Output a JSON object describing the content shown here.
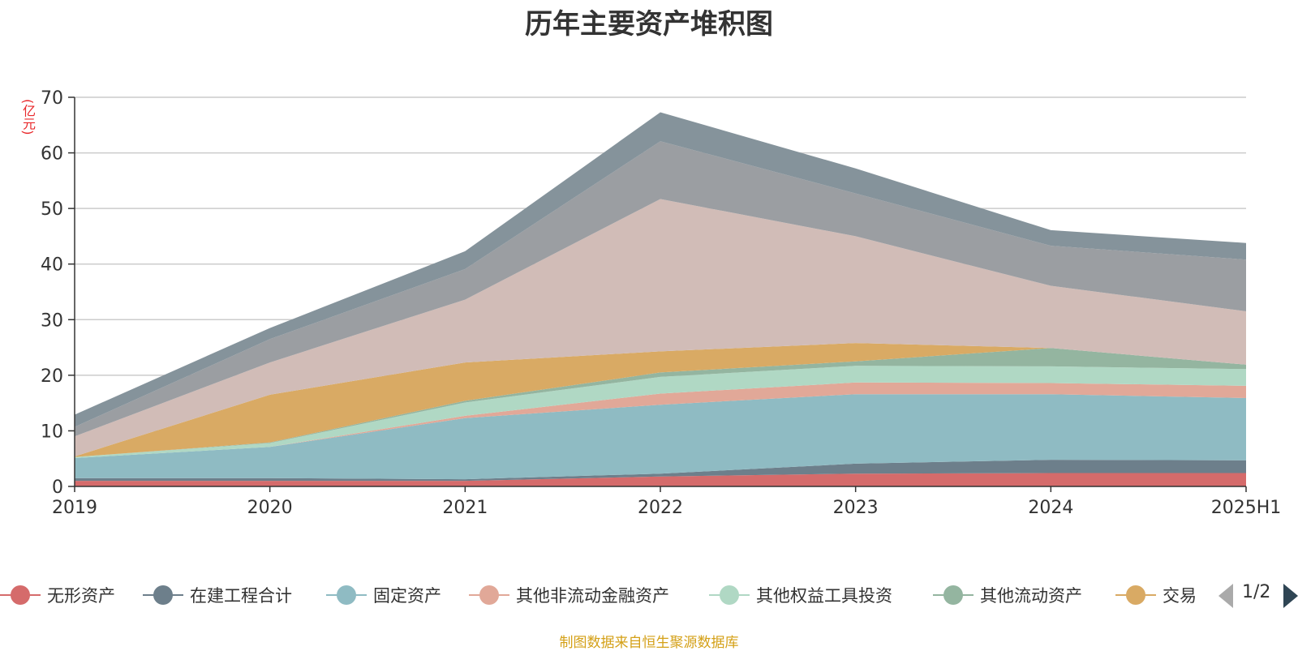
{
  "chart_data": {
    "type": "area",
    "stacked": true,
    "title": "历年主要资产堆积图",
    "unit_label": "(亿元)",
    "categories": [
      "2019",
      "2020",
      "2021",
      "2022",
      "2023",
      "2024",
      "2025H1"
    ],
    "ylim": [
      0,
      70
    ],
    "y_ticks": [
      0,
      10,
      20,
      30,
      40,
      50,
      60,
      70
    ],
    "grid": true,
    "legend_position": "bottom",
    "series": [
      {
        "name": "无形资产",
        "color": "#d56b6b",
        "values": [
          1.0,
          1.0,
          1.0,
          1.8,
          2.3,
          2.4,
          2.4
        ]
      },
      {
        "name": "在建工程合计",
        "color": "#6d7f8b",
        "values": [
          0.5,
          0.5,
          0.3,
          0.5,
          1.8,
          2.4,
          2.3
        ]
      },
      {
        "name": "固定资产",
        "color": "#8fbbc3",
        "values": [
          3.6,
          5.6,
          11.0,
          12.4,
          12.5,
          11.8,
          11.2
        ]
      },
      {
        "name": "其他非流动金融资产",
        "color": "#e1a898",
        "values": [
          0.0,
          0.0,
          0.4,
          2.0,
          2.1,
          2.0,
          2.2
        ]
      },
      {
        "name": "其他权益工具投资",
        "color": "#b0d8c4",
        "values": [
          0.2,
          0.7,
          2.4,
          3.0,
          3.0,
          3.0,
          3.0
        ]
      },
      {
        "name": "其他流动资产",
        "color": "#94b5a0",
        "values": [
          0.0,
          0.1,
          0.3,
          0.8,
          0.8,
          3.3,
          0.8
        ]
      },
      {
        "name": "交易",
        "color": "#d9aa64",
        "values": [
          0.1,
          8.6,
          6.9,
          3.8,
          3.3,
          0.0,
          0.0
        ]
      },
      {
        "name": "",
        "color": "#d1bcb7",
        "values": [
          3.6,
          5.8,
          11.3,
          27.4,
          19.2,
          11.2,
          9.6
        ]
      },
      {
        "name": "",
        "color": "#9b9ea2",
        "values": [
          1.7,
          4.2,
          5.5,
          10.4,
          7.7,
          7.2,
          9.3
        ]
      },
      {
        "name": "",
        "color": "#85939b",
        "values": [
          2.2,
          2.0,
          3.2,
          5.2,
          4.5,
          2.8,
          3.0
        ]
      }
    ],
    "legend_visible_count": 7
  },
  "pager": {
    "text": "1/2"
  },
  "source_text": "制图数据来自恒生聚源数据库"
}
